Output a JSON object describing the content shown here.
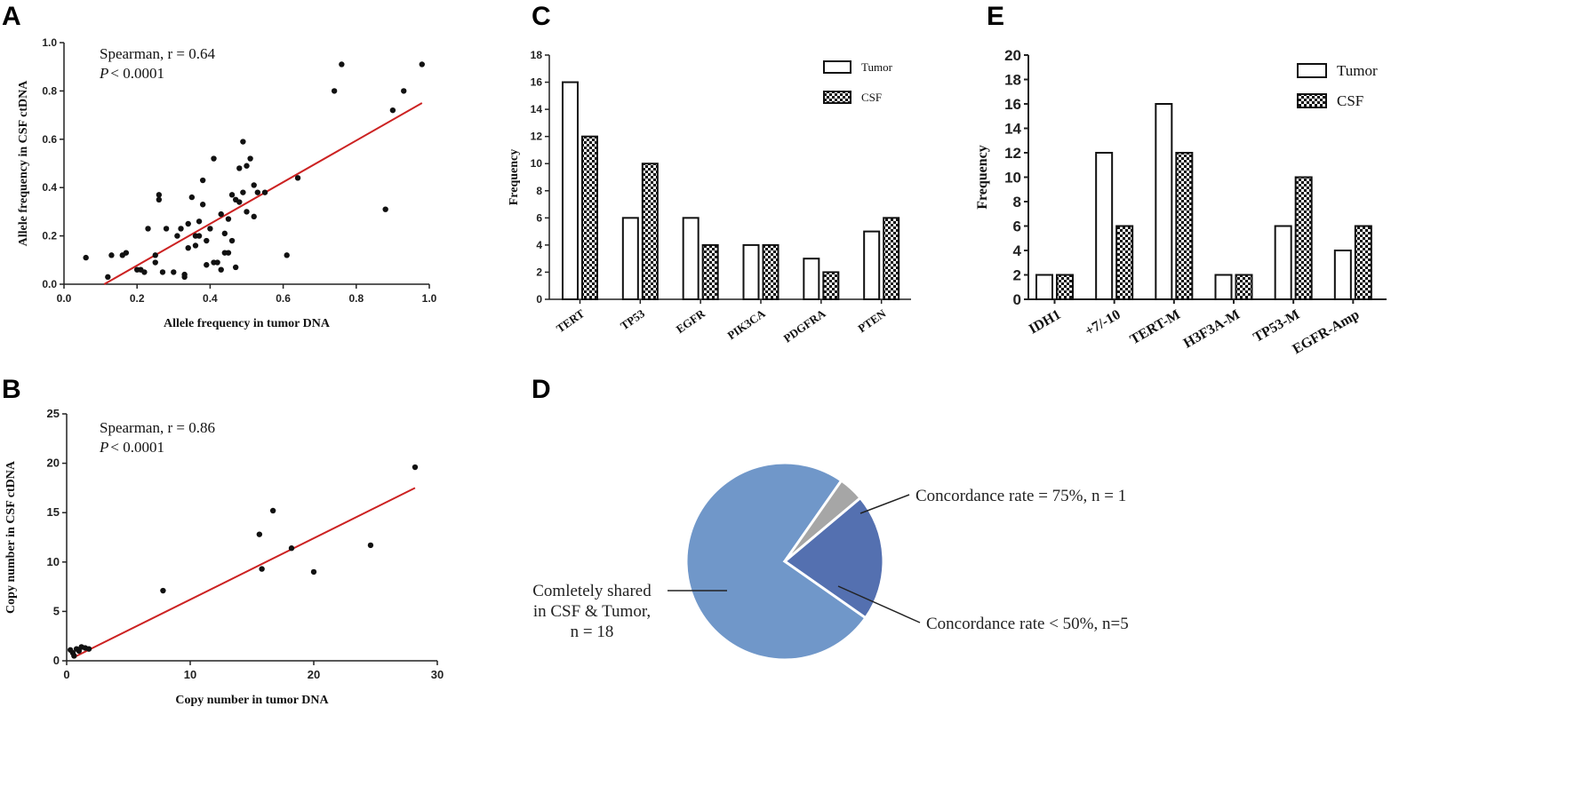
{
  "panels": {
    "A": {
      "letter": "A",
      "annotation_line1": "Spearman, r = 0.64",
      "annotation_p_italic": "P",
      "annotation_p_rest": "< 0.0001"
    },
    "B": {
      "letter": "B",
      "annotation_line1": "Spearman, r = 0.86",
      "annotation_p_italic": "P",
      "annotation_p_rest": "< 0.0001"
    },
    "C": {
      "letter": "C"
    },
    "D": {
      "letter": "D"
    },
    "E": {
      "letter": "E"
    }
  },
  "colors": {
    "fit_line": "#cc2222",
    "point": "#111111",
    "pie_main": "#7097c9",
    "pie_gray": "#a6a6a6",
    "pie_dark": "#5470b0"
  },
  "chart_data": [
    {
      "panel": "A",
      "type": "scatter",
      "xlabel": "Allele frequency in tumor DNA",
      "ylabel": "Allele frequency in CSF ctDNA",
      "xlim": [
        0,
        1.0
      ],
      "ylim": [
        0,
        1.0
      ],
      "xticks": [
        "0.0",
        "0.2",
        "0.4",
        "0.6",
        "0.8",
        "1.0"
      ],
      "yticks": [
        "0.0",
        "0.2",
        "0.4",
        "0.6",
        "0.8",
        "1.0"
      ],
      "fit_line": [
        [
          0.11,
          0.0
        ],
        [
          0.98,
          0.75
        ]
      ],
      "points": [
        [
          0.06,
          0.11
        ],
        [
          0.12,
          0.03
        ],
        [
          0.13,
          0.12
        ],
        [
          0.16,
          0.12
        ],
        [
          0.17,
          0.13
        ],
        [
          0.2,
          0.06
        ],
        [
          0.21,
          0.06
        ],
        [
          0.22,
          0.05
        ],
        [
          0.23,
          0.23
        ],
        [
          0.25,
          0.12
        ],
        [
          0.25,
          0.09
        ],
        [
          0.26,
          0.35
        ],
        [
          0.26,
          0.37
        ],
        [
          0.27,
          0.05
        ],
        [
          0.28,
          0.23
        ],
        [
          0.3,
          0.05
        ],
        [
          0.31,
          0.2
        ],
        [
          0.32,
          0.23
        ],
        [
          0.33,
          0.03
        ],
        [
          0.33,
          0.04
        ],
        [
          0.34,
          0.15
        ],
        [
          0.34,
          0.25
        ],
        [
          0.35,
          0.36
        ],
        [
          0.36,
          0.16
        ],
        [
          0.36,
          0.2
        ],
        [
          0.37,
          0.26
        ],
        [
          0.37,
          0.2
        ],
        [
          0.38,
          0.33
        ],
        [
          0.38,
          0.43
        ],
        [
          0.39,
          0.18
        ],
        [
          0.39,
          0.08
        ],
        [
          0.4,
          0.23
        ],
        [
          0.41,
          0.52
        ],
        [
          0.41,
          0.09
        ],
        [
          0.42,
          0.09
        ],
        [
          0.43,
          0.29
        ],
        [
          0.43,
          0.06
        ],
        [
          0.44,
          0.13
        ],
        [
          0.44,
          0.21
        ],
        [
          0.45,
          0.27
        ],
        [
          0.45,
          0.13
        ],
        [
          0.46,
          0.37
        ],
        [
          0.46,
          0.18
        ],
        [
          0.47,
          0.35
        ],
        [
          0.47,
          0.07
        ],
        [
          0.48,
          0.34
        ],
        [
          0.48,
          0.48
        ],
        [
          0.49,
          0.38
        ],
        [
          0.49,
          0.59
        ],
        [
          0.5,
          0.3
        ],
        [
          0.5,
          0.49
        ],
        [
          0.51,
          0.52
        ],
        [
          0.52,
          0.41
        ],
        [
          0.52,
          0.28
        ],
        [
          0.53,
          0.38
        ],
        [
          0.55,
          0.38
        ],
        [
          0.61,
          0.12
        ],
        [
          0.64,
          0.44
        ],
        [
          0.74,
          0.8
        ],
        [
          0.76,
          0.91
        ],
        [
          0.88,
          0.31
        ],
        [
          0.9,
          0.72
        ],
        [
          0.93,
          0.8
        ],
        [
          0.98,
          0.91
        ]
      ]
    },
    {
      "panel": "B",
      "type": "scatter",
      "xlabel": "Copy number in tumor DNA",
      "ylabel": "Copy number in CSF ctDNA",
      "xlim": [
        0,
        30
      ],
      "ylim": [
        0,
        25
      ],
      "xticks": [
        "0",
        "10",
        "20",
        "30"
      ],
      "yticks": [
        "0",
        "5",
        "10",
        "15",
        "20",
        "25"
      ],
      "fit_line": [
        [
          0.5,
          0.3
        ],
        [
          28.2,
          17.5
        ]
      ],
      "points": [
        [
          0.3,
          1.1
        ],
        [
          0.5,
          0.8
        ],
        [
          0.6,
          0.5
        ],
        [
          0.8,
          1.2
        ],
        [
          1.0,
          1.0
        ],
        [
          1.2,
          1.4
        ],
        [
          1.5,
          1.3
        ],
        [
          1.8,
          1.2
        ],
        [
          7.8,
          7.1
        ],
        [
          15.6,
          12.8
        ],
        [
          15.8,
          9.3
        ],
        [
          16.7,
          15.2
        ],
        [
          18.2,
          11.4
        ],
        [
          20.0,
          9.0
        ],
        [
          24.6,
          11.7
        ],
        [
          28.2,
          19.6
        ]
      ]
    },
    {
      "panel": "C",
      "type": "bar",
      "ylabel": "Frequency",
      "ylim": [
        0,
        18
      ],
      "yticks": [
        "0",
        "2",
        "4",
        "6",
        "8",
        "10",
        "12",
        "14",
        "16",
        "18"
      ],
      "categories": [
        "TERT",
        "TP53",
        "EGFR",
        "PIK3CA",
        "PDGFRA",
        "PTEN"
      ],
      "series": [
        {
          "name": "Tumor",
          "values": [
            16,
            6,
            6,
            4,
            3,
            5
          ]
        },
        {
          "name": "CSF",
          "values": [
            12,
            10,
            4,
            4,
            2,
            6
          ]
        }
      ],
      "legend": "top-right"
    },
    {
      "panel": "D",
      "type": "pie",
      "slices": [
        {
          "label_lines": [
            "Comletely shared",
            "in CSF & Tumor,",
            "n = 18"
          ],
          "value": 18
        },
        {
          "label_lines": [
            "Concordance rate = 75%, n = 1"
          ],
          "value": 1
        },
        {
          "label_lines": [
            "Concordance rate < 50%, n=5"
          ],
          "value": 5
        }
      ]
    },
    {
      "panel": "E",
      "type": "bar",
      "ylabel": "Frequency",
      "ylim": [
        0,
        20
      ],
      "yticks": [
        "0",
        "2",
        "4",
        "6",
        "8",
        "10",
        "12",
        "14",
        "16",
        "18",
        "20"
      ],
      "categories": [
        "IDH1",
        "+7/-10",
        "TERT-M",
        "H3F3A-M",
        "TP53-M",
        "EGFR-Amp"
      ],
      "series": [
        {
          "name": "Tumor",
          "values": [
            2,
            12,
            16,
            2,
            6,
            4
          ]
        },
        {
          "name": "CSF",
          "values": [
            2,
            6,
            12,
            2,
            10,
            6
          ]
        }
      ],
      "legend": "top-right"
    }
  ]
}
